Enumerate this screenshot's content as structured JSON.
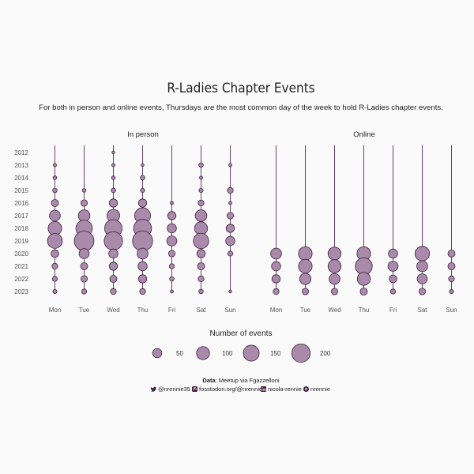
{
  "title": "R-Ladies Chapter Events",
  "subtitle": "For both in person and online events, Thursdays are the most common day of the week to hold R-Ladies chapter events.",
  "caption": {
    "data_label": "Data",
    "data_text": ": Meetup via Fgazzelloni",
    "twitter": "@nrennie35",
    "mastodon": "fosstodon.org/@nrennie",
    "linkedin": "nicola-rennie",
    "github": "nrennie"
  },
  "colors": {
    "fill": "#a98aab",
    "stroke": "#3d1d3d",
    "line": "#5a2a5a",
    "background": "#fafafa"
  },
  "chart_data": {
    "type": "scatter",
    "facets": [
      "In person",
      "Online"
    ],
    "days": [
      "Mon",
      "Tue",
      "Wed",
      "Thu",
      "Fri",
      "Sat",
      "Sun"
    ],
    "years": [
      "2012",
      "2013",
      "2014",
      "2015",
      "2016",
      "2017",
      "2018",
      "2019",
      "2020",
      "2021",
      "2022",
      "2023"
    ],
    "size_legend": {
      "title": "Number of events",
      "breaks": [
        50,
        100,
        150,
        200
      ]
    },
    "series": [
      {
        "name": "In person",
        "counts": {
          "Mon": [
            0,
            6,
            8,
            12,
            30,
            70,
            110,
            130,
            35,
            20,
            15,
            10
          ],
          "Tue": [
            0,
            0,
            0,
            8,
            25,
            80,
            160,
            230,
            60,
            30,
            25,
            15
          ],
          "Wed": [
            4,
            6,
            8,
            12,
            40,
            95,
            180,
            200,
            50,
            40,
            30,
            20
          ],
          "Thu": [
            0,
            4,
            12,
            10,
            40,
            150,
            190,
            240,
            70,
            50,
            40,
            20
          ],
          "Fri": [
            0,
            0,
            0,
            0,
            6,
            40,
            50,
            60,
            25,
            15,
            12,
            6
          ],
          "Sat": [
            0,
            12,
            6,
            10,
            20,
            80,
            100,
            140,
            40,
            30,
            20,
            12
          ],
          "Sun": [
            0,
            6,
            0,
            20,
            6,
            25,
            40,
            50,
            15,
            0,
            0,
            4
          ]
        }
      },
      {
        "name": "Online",
        "counts": {
          "Mon": [
            0,
            0,
            0,
            0,
            0,
            0,
            0,
            0,
            70,
            50,
            40,
            20
          ],
          "Tue": [
            0,
            0,
            0,
            0,
            0,
            0,
            0,
            0,
            110,
            110,
            75,
            25
          ],
          "Wed": [
            0,
            0,
            0,
            0,
            0,
            0,
            0,
            0,
            100,
            100,
            70,
            25
          ],
          "Thu": [
            0,
            0,
            0,
            0,
            0,
            0,
            0,
            0,
            110,
            170,
            100,
            30
          ],
          "Fri": [
            0,
            0,
            0,
            0,
            0,
            0,
            0,
            0,
            50,
            60,
            35,
            15
          ],
          "Sat": [
            0,
            0,
            0,
            0,
            0,
            0,
            0,
            0,
            125,
            70,
            60,
            25
          ],
          "Sun": [
            0,
            0,
            0,
            0,
            0,
            0,
            0,
            0,
            30,
            30,
            20,
            10
          ]
        }
      }
    ]
  }
}
